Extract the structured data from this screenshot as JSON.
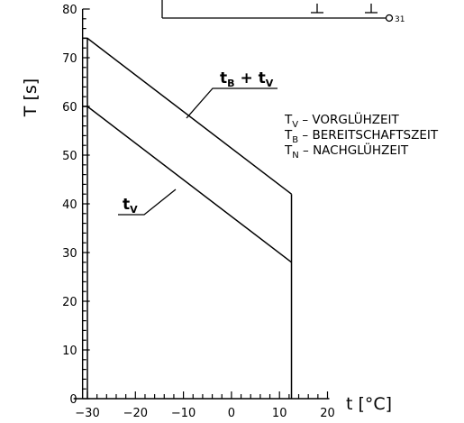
{
  "chart_data": {
    "type": "line",
    "x_ticks": [
      -30,
      -20,
      -10,
      0,
      10,
      20
    ],
    "y_ticks": [
      0,
      10,
      20,
      30,
      40,
      50,
      60,
      70,
      80
    ],
    "xlim": [
      -31,
      20
    ],
    "ylim": [
      0,
      80
    ],
    "xlabel": "t [°C]",
    "ylabel": "T [s]",
    "series": [
      {
        "name": "tB + tV",
        "points": [
          [
            -31,
            74
          ],
          [
            -30,
            74
          ],
          [
            12.5,
            42
          ]
        ],
        "label_main": "t",
        "label_sub": "B",
        "label_plus": " + t",
        "label_sub2": "V"
      },
      {
        "name": "tV",
        "points": [
          [
            -31,
            60
          ],
          [
            -30,
            60
          ],
          [
            12.5,
            28
          ]
        ],
        "label_main": "t",
        "label_sub": "V"
      }
    ],
    "vertical_lines": [
      {
        "x": -30,
        "from": 0,
        "to": 74
      },
      {
        "x": 12.5,
        "from": 0,
        "to": 42
      }
    ],
    "legend": [
      {
        "sym": "T",
        "sub": "V",
        "text": "VORGLÜHZEIT"
      },
      {
        "sym": "T",
        "sub": "B",
        "text": "BEREITSCHAFTSZEIT"
      },
      {
        "sym": "T",
        "sub": "N",
        "text": "NACHGLÜHZEIT"
      }
    ],
    "top_connector_label": "31"
  }
}
